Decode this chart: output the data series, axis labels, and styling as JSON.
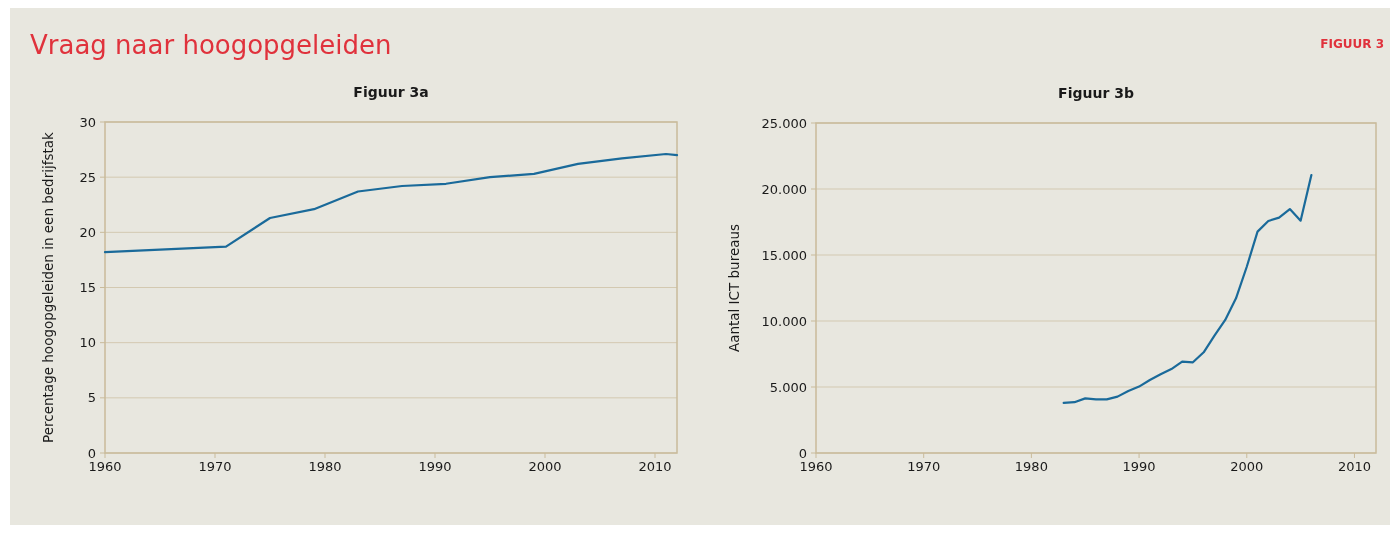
{
  "chart_data": [
    {
      "type": "line",
      "title": "Figuur 3a",
      "ylabel": "Percentage hoogopgeleiden in een bedrijfstak",
      "annotations": [
        "Vraag naar hoogopgeleiden",
        "FIGUUR 3"
      ],
      "x": [
        1960,
        1971,
        1975,
        1979,
        1983,
        1987,
        1991,
        1995,
        1999,
        2003,
        2007,
        2011,
        2012
      ],
      "series": [
        {
          "color": "#1a6a9a",
          "values": [
            18.2,
            18.7,
            21.3,
            22.1,
            23.7,
            24.2,
            24.4,
            25.0,
            25.3,
            26.2,
            26.7,
            27.1,
            27.0
          ]
        }
      ],
      "xlim": [
        1960,
        2012
      ],
      "xticks": [
        1960,
        1970,
        1980,
        1990,
        2000,
        2010
      ],
      "ylim": [
        0,
        30
      ],
      "yticks": [
        0,
        5,
        10,
        15,
        20,
        25,
        30
      ],
      "grid": "y",
      "marker": "none",
      "line_style": "solid"
    },
    {
      "type": "line",
      "title": "Figuur 3b",
      "ylabel": "Aantal ICT bureaus",
      "x": [
        1983,
        1984,
        1985,
        1986,
        1987,
        1988,
        1989,
        1990,
        1991,
        1992,
        1993,
        1994,
        1995,
        1996,
        1997,
        1998,
        1999,
        2000,
        2001,
        2002,
        2003,
        2004,
        2005,
        2006
      ],
      "series": [
        {
          "color": "#1a6a9a",
          "values": [
            3800,
            3850,
            4140,
            4060,
            4060,
            4270,
            4700,
            5030,
            5530,
            5960,
            6360,
            6920,
            6870,
            7630,
            8890,
            10080,
            11720,
            14110,
            16770,
            17580,
            17830,
            18480,
            17600,
            21060
          ]
        }
      ],
      "xlim": [
        1960,
        2012
      ],
      "xticks": [
        1960,
        1970,
        1980,
        1990,
        2000,
        2010
      ],
      "ylim": [
        0,
        25000
      ],
      "yticks": [
        0,
        {
          "value": 5000,
          "label": "5.000"
        },
        {
          "value": 10000,
          "label": "10.000"
        },
        {
          "value": 15000,
          "label": "15.000"
        },
        {
          "value": 20000,
          "label": "20.000"
        },
        {
          "value": 25000,
          "label": "25.000"
        }
      ],
      "grid": "y",
      "marker": "none",
      "line_style": "solid"
    }
  ]
}
